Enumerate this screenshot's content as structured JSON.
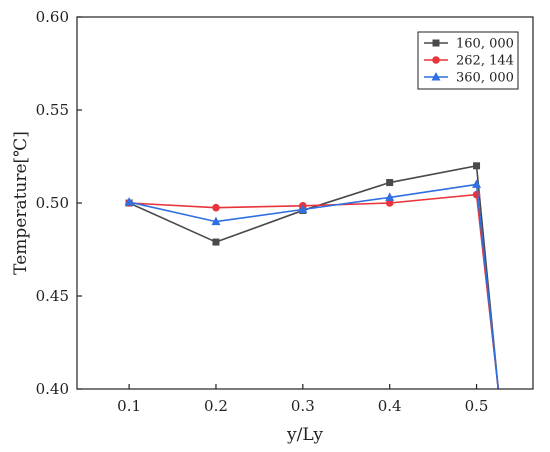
{
  "chart_data": {
    "type": "line",
    "title": "",
    "xlabel": "y/Ly",
    "ylabel": "Temperature[℃]",
    "xlim": [
      0.04,
      0.565
    ],
    "ylim": [
      0.4,
      0.6
    ],
    "xticks": [
      0.1,
      0.2,
      0.3,
      0.4,
      0.5
    ],
    "xtick_labels": [
      "0.1",
      "0.2",
      "0.3",
      "0.4",
      "0.5"
    ],
    "yticks": [
      0.4,
      0.45,
      0.5,
      0.55,
      0.6
    ],
    "ytick_labels": [
      "0.40",
      "0.45",
      "0.50",
      "0.55",
      "0.60"
    ],
    "grid": false,
    "legend_position": "top-right",
    "series": [
      {
        "name": "160, 000",
        "color": "#4a4a4a",
        "marker": "square",
        "x": [
          0.1,
          0.2,
          0.3,
          0.4,
          0.5,
          0.525
        ],
        "y": [
          0.5,
          0.479,
          0.496,
          0.511,
          0.52,
          0.4
        ]
      },
      {
        "name": "262, 144",
        "color": "#e8343a",
        "marker": "circle",
        "x": [
          0.1,
          0.2,
          0.3,
          0.4,
          0.5,
          0.525
        ],
        "y": [
          0.5,
          0.4975,
          0.4985,
          0.5,
          0.5045,
          0.4
        ]
      },
      {
        "name": "360, 000",
        "color": "#2f6fe0",
        "marker": "triangle",
        "x": [
          0.1,
          0.2,
          0.3,
          0.4,
          0.5,
          0.525
        ],
        "y": [
          0.5005,
          0.49,
          0.4965,
          0.503,
          0.51,
          0.4
        ]
      }
    ]
  }
}
